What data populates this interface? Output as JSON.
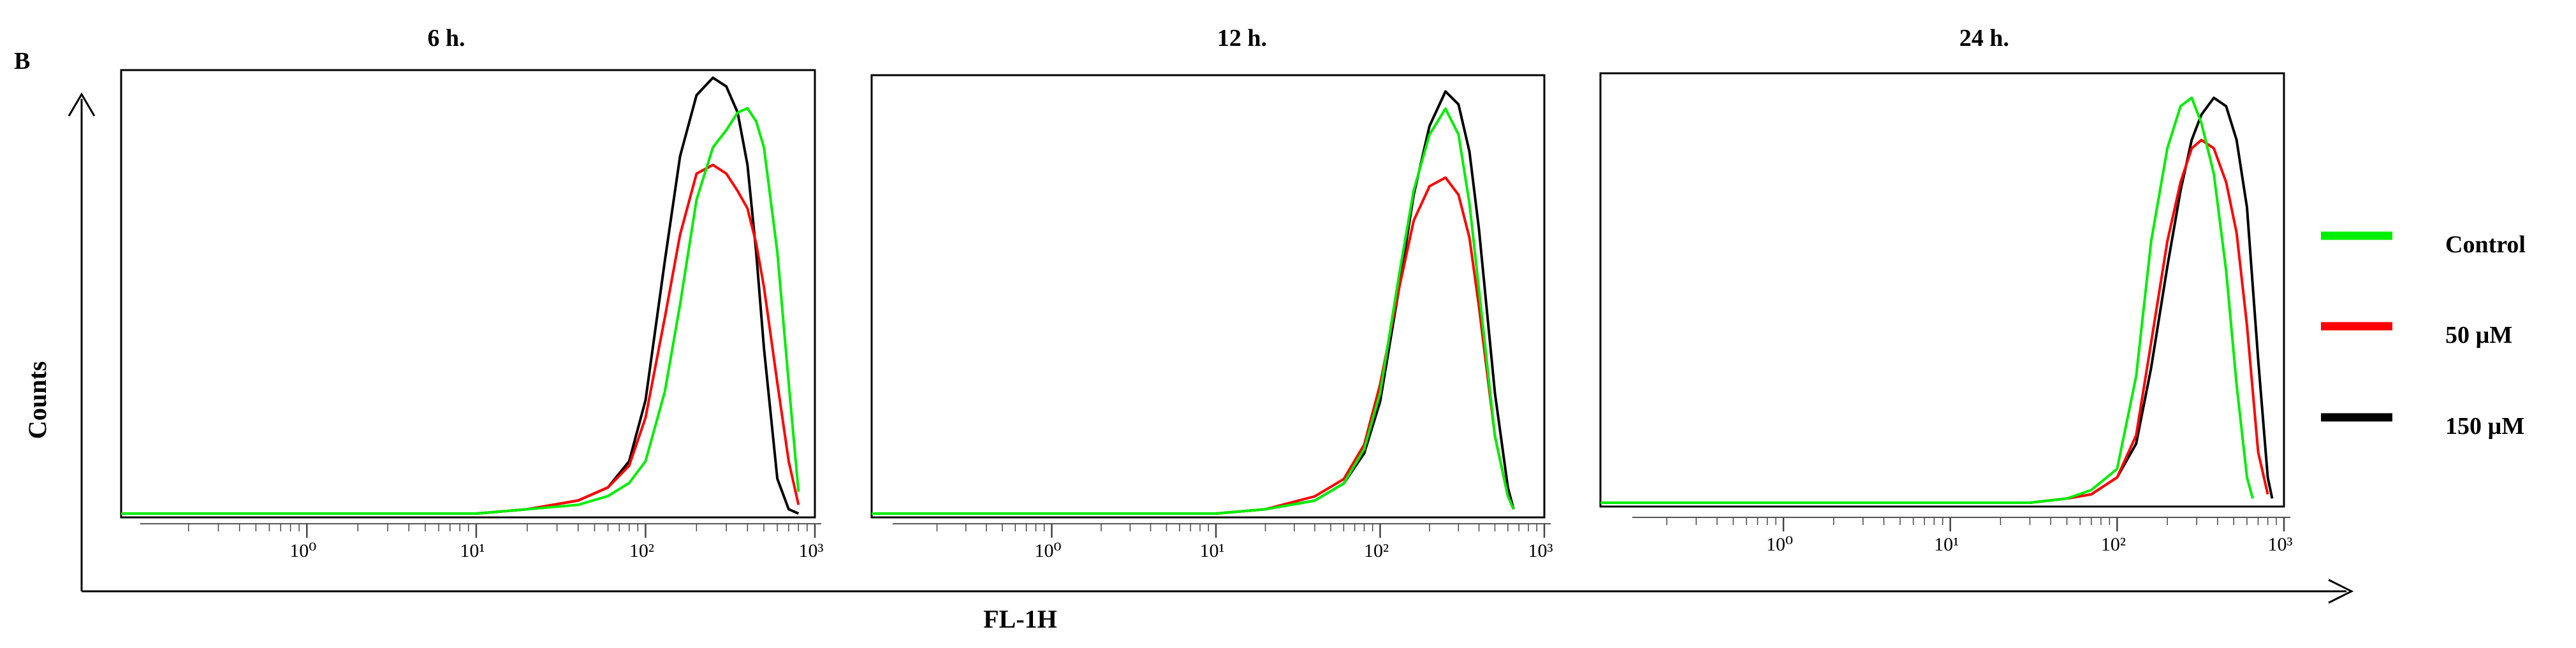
{
  "figure": {
    "panel_letter": "B",
    "ylabel": "Counts",
    "xlabel": "FL-1H"
  },
  "legend": [
    {
      "label": "Control",
      "color": "#00ee00"
    },
    {
      "label": "50 µM",
      "color": "#ff0000"
    },
    {
      "label": "150 µM",
      "color": "#000000"
    }
  ],
  "chart_data": [
    {
      "type": "line",
      "title": "6 h.",
      "xscale": "log",
      "xlim": [
        0.08,
        1000
      ],
      "x_tick_labels": [
        "10⁰",
        "10¹",
        "10²",
        "10³"
      ],
      "ylim": [
        0,
        100
      ],
      "grid": false,
      "series": [
        {
          "name": "Control",
          "color": "#00ee00",
          "x": [
            0.08,
            10,
            20,
            40,
            60,
            80,
            100,
            130,
            160,
            200,
            250,
            300,
            350,
            400,
            450,
            500,
            600,
            700,
            800
          ],
          "y": [
            0,
            0,
            1,
            2,
            4,
            7,
            12,
            28,
            48,
            72,
            84,
            88,
            92,
            93,
            90,
            84,
            60,
            30,
            5
          ]
        },
        {
          "name": "50 µM",
          "color": "#ff0000",
          "x": [
            0.08,
            10,
            20,
            40,
            60,
            80,
            100,
            130,
            160,
            200,
            250,
            300,
            350,
            400,
            450,
            500,
            600,
            700,
            800
          ],
          "y": [
            0,
            0,
            1,
            3,
            6,
            11,
            22,
            45,
            64,
            78,
            80,
            78,
            74,
            70,
            62,
            52,
            30,
            12,
            2
          ]
        },
        {
          "name": "150 µM",
          "color": "#000000",
          "x": [
            0.08,
            10,
            20,
            40,
            60,
            80,
            100,
            130,
            160,
            200,
            250,
            300,
            350,
            400,
            450,
            500,
            600,
            700,
            800
          ],
          "y": [
            0,
            0,
            1,
            3,
            6,
            12,
            26,
            58,
            82,
            96,
            100,
            98,
            92,
            80,
            60,
            38,
            8,
            1,
            0
          ]
        }
      ]
    },
    {
      "type": "line",
      "title": "12 h.",
      "xscale": "log",
      "xlim": [
        0.08,
        1000
      ],
      "x_tick_labels": [
        "10⁰",
        "10¹",
        "10²",
        "10³"
      ],
      "ylim": [
        0,
        100
      ],
      "grid": false,
      "series": [
        {
          "name": "Control",
          "color": "#00ee00",
          "x": [
            0.08,
            10,
            20,
            40,
            60,
            80,
            100,
            130,
            160,
            200,
            250,
            300,
            350,
            400,
            500,
            600,
            650
          ],
          "y": [
            0,
            0,
            1,
            3,
            7,
            15,
            28,
            55,
            75,
            88,
            94,
            88,
            72,
            52,
            18,
            4,
            1
          ]
        },
        {
          "name": "50 µM",
          "color": "#ff0000",
          "x": [
            0.08,
            10,
            20,
            40,
            60,
            80,
            100,
            130,
            160,
            200,
            250,
            300,
            350,
            400,
            500,
            600,
            650
          ],
          "y": [
            0,
            0,
            1,
            4,
            8,
            16,
            30,
            52,
            68,
            76,
            78,
            74,
            64,
            48,
            18,
            4,
            1
          ]
        },
        {
          "name": "150 µM",
          "color": "#000000",
          "x": [
            0.08,
            10,
            20,
            40,
            60,
            80,
            100,
            130,
            160,
            200,
            250,
            300,
            350,
            400,
            500,
            600,
            650
          ],
          "y": [
            0,
            0,
            1,
            3,
            7,
            14,
            26,
            52,
            74,
            90,
            98,
            95,
            84,
            66,
            28,
            6,
            1
          ]
        }
      ]
    },
    {
      "type": "line",
      "title": "24 h.",
      "xscale": "log",
      "xlim": [
        0.08,
        1000
      ],
      "x_tick_labels": [
        "10⁰",
        "10¹",
        "10²",
        "10³"
      ],
      "ylim": [
        0,
        100
      ],
      "grid": false,
      "series": [
        {
          "name": "Control",
          "color": "#00ee00",
          "x": [
            0.08,
            30,
            50,
            70,
            100,
            130,
            160,
            200,
            240,
            280,
            320,
            380,
            450,
            520,
            600,
            650
          ],
          "y": [
            0,
            0,
            1,
            3,
            8,
            30,
            62,
            84,
            94,
            96,
            90,
            78,
            55,
            28,
            6,
            1
          ]
        },
        {
          "name": "50 µM",
          "color": "#ff0000",
          "x": [
            0.08,
            30,
            50,
            70,
            100,
            130,
            160,
            200,
            240,
            280,
            320,
            380,
            450,
            520,
            600,
            700,
            800
          ],
          "y": [
            0,
            0,
            1,
            2,
            6,
            16,
            38,
            62,
            76,
            84,
            86,
            84,
            76,
            64,
            42,
            12,
            2
          ]
        },
        {
          "name": "150 µM",
          "color": "#000000",
          "x": [
            0.08,
            30,
            50,
            70,
            100,
            130,
            160,
            200,
            240,
            280,
            320,
            380,
            450,
            520,
            600,
            700,
            800,
            850
          ],
          "y": [
            0,
            0,
            1,
            2,
            6,
            14,
            32,
            56,
            74,
            86,
            92,
            96,
            94,
            86,
            70,
            34,
            6,
            1
          ]
        }
      ]
    }
  ]
}
